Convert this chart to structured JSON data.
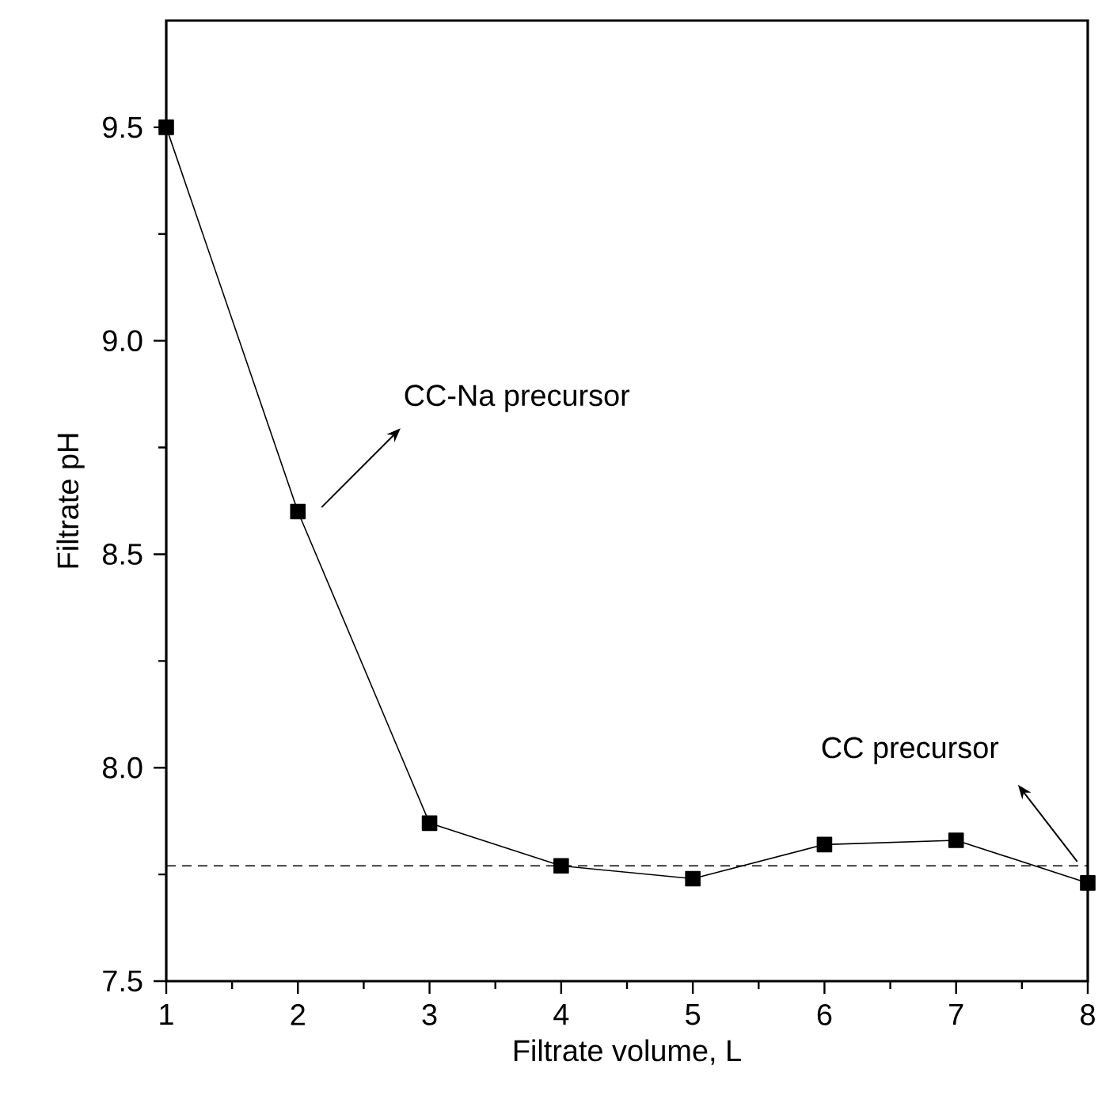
{
  "chart_data": {
    "type": "line",
    "xlabel": "Filtrate volume, L",
    "ylabel": "Filtrate pH",
    "x": [
      1,
      2,
      3,
      4,
      5,
      6,
      7,
      8
    ],
    "series": [
      {
        "color": "#000000",
        "values": [
          9.5,
          8.6,
          7.87,
          7.77,
          7.74,
          7.82,
          7.83,
          7.73
        ]
      }
    ],
    "xlim": [
      1,
      8
    ],
    "xticks": [
      1,
      2,
      3,
      4,
      5,
      6,
      7,
      8
    ],
    "ylim": [
      7.5,
      9.75
    ],
    "yticks": [
      7.5,
      {
        "value": 8,
        "label": "8.0"
      },
      8.5,
      {
        "value": 9,
        "label": "9.0"
      },
      9.5
    ],
    "ref_lines": [
      {
        "axis": "y",
        "value": 7.77,
        "color": "#000000",
        "line_style": "dashed"
      }
    ],
    "annotations": [
      "CC-Na precursor",
      "CC precursor"
    ],
    "marker": "square",
    "line_style": "solid",
    "grid": false
  }
}
